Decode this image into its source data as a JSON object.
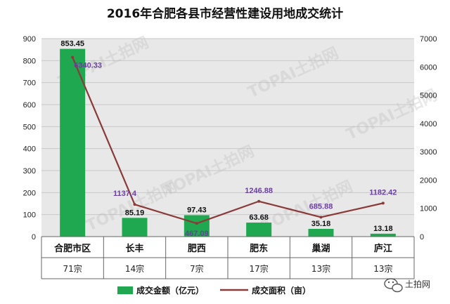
{
  "chart_data": {
    "type": "bar",
    "title": "2016年合肥各县市经营性建设用地成交统计",
    "categories": [
      "合肥市区",
      "长丰",
      "肥西",
      "肥东",
      "巢湖",
      "庐江"
    ],
    "counts": [
      "71宗",
      "14宗",
      "7宗",
      "17宗",
      "13宗",
      "13宗"
    ],
    "series": [
      {
        "name": "成交金额（亿元）",
        "type": "bar",
        "axis": "left",
        "color": "#1fa84f",
        "values": [
          853.45,
          85.19,
          97.43,
          63.68,
          35.18,
          13.18
        ],
        "labels": [
          "853.45",
          "85.19",
          "97.43",
          "63.68",
          "35.18",
          "13.18"
        ]
      },
      {
        "name": "成交面积（亩）",
        "type": "line",
        "axis": "right",
        "color": "#8b3a3a",
        "values": [
          6340.33,
          1137.4,
          467.09,
          1246.88,
          685.88,
          1182.42
        ],
        "labels": [
          "6340.33",
          "1137.4",
          "467.09",
          "1246.88",
          "685.88",
          "1182.42"
        ]
      }
    ],
    "y_left": {
      "lim": [
        0,
        900
      ],
      "ticks": [
        "0",
        "100",
        "200",
        "300",
        "400",
        "500",
        "600",
        "700",
        "800",
        "900"
      ]
    },
    "y_right": {
      "lim": [
        0,
        7000
      ],
      "ticks": [
        "0",
        "1000",
        "2000",
        "3000",
        "4000",
        "5000",
        "6000",
        "7000"
      ]
    },
    "grid": true,
    "legend": "bottom"
  },
  "watermark_text": "TOPAI土拍网",
  "brand": {
    "label": "土拍网",
    "icon": "wechat-icon"
  }
}
